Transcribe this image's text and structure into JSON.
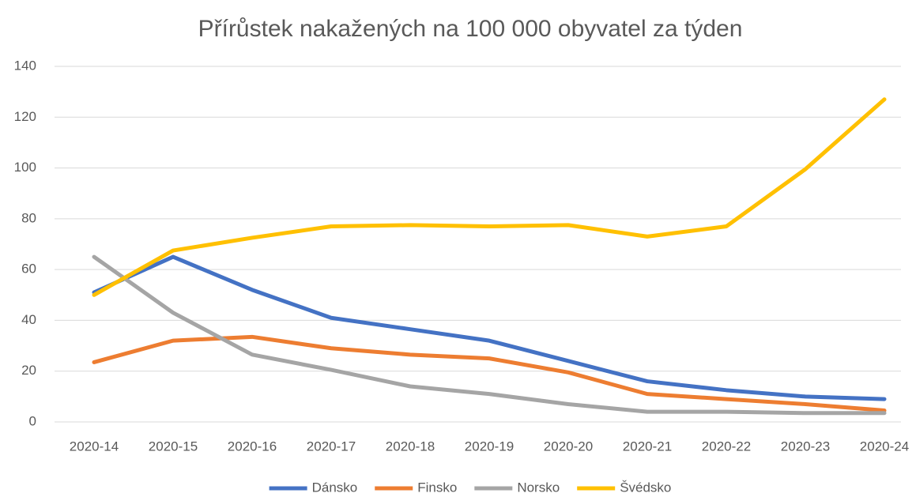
{
  "chart_data": {
    "type": "line",
    "title": "Přírůstek nakažených na 100 000 obyvatel za týden",
    "categories": [
      "2020-14",
      "2020-15",
      "2020-16",
      "2020-17",
      "2020-18",
      "2020-19",
      "2020-20",
      "2020-21",
      "2020-22",
      "2020-23",
      "2020-24"
    ],
    "series": [
      {
        "name": "Dánsko",
        "color": "#4472c4",
        "values": [
          51,
          65,
          52,
          41,
          36.5,
          32,
          24,
          16,
          12.5,
          10,
          9
        ]
      },
      {
        "name": "Finsko",
        "color": "#ed7d31",
        "values": [
          23.5,
          32,
          33.5,
          29,
          26.5,
          25,
          19.5,
          11,
          9,
          7,
          4.5
        ]
      },
      {
        "name": "Norsko",
        "color": "#a5a5a5",
        "values": [
          65,
          43,
          26.5,
          20.5,
          14,
          11,
          7,
          4,
          4,
          3.5,
          3.5
        ]
      },
      {
        "name": "Švédsko",
        "color": "#ffc000",
        "values": [
          50,
          67.5,
          72.5,
          77,
          77.5,
          77,
          77.5,
          73,
          77,
          99.5,
          127
        ]
      }
    ],
    "ylim": [
      0,
      140
    ],
    "yticks": [
      0,
      20,
      40,
      60,
      80,
      100,
      120,
      140
    ],
    "grid": true,
    "legend": "bottom"
  }
}
